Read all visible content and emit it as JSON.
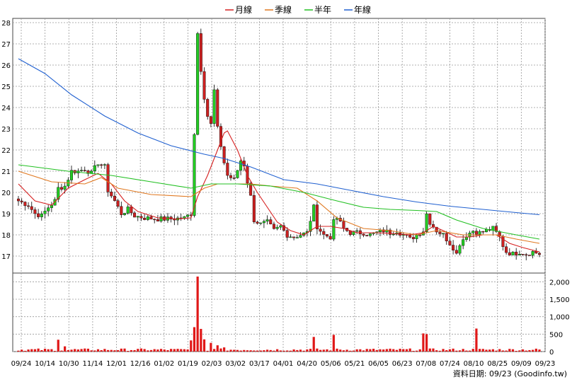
{
  "legend": [
    {
      "label": "月線",
      "color": "#d62020"
    },
    {
      "label": "季線",
      "color": "#e07820"
    },
    {
      "label": "半年",
      "color": "#22c022"
    },
    {
      "label": "年線",
      "color": "#2060d0"
    }
  ],
  "footer_text": "資料日期: 09/23  (Goodinfo.tw)",
  "chart_data": {
    "type": "candlestick",
    "price_axis": {
      "min": 16.2,
      "max": 28.2,
      "ticks": [
        17,
        18,
        19,
        20,
        21,
        22,
        23,
        24,
        25,
        26,
        27,
        28
      ],
      "side": "left"
    },
    "volume_axis": {
      "min": 0,
      "max": 2250,
      "ticks": [
        0,
        500,
        1000,
        1500,
        2000
      ],
      "tick_labels": [
        "0",
        "500",
        "1,000",
        "1,500",
        "2,000"
      ],
      "side": "right"
    },
    "x_ticks": [
      "09/24",
      "10/14",
      "10/30",
      "11/14",
      "12/01",
      "12/16",
      "01/02",
      "01/19",
      "02/03",
      "03/02",
      "03/17",
      "04/01",
      "04/20",
      "05/06",
      "05/21",
      "06/05",
      "06/23",
      "07/08",
      "07/24",
      "08/10",
      "08/25",
      "09/09",
      "09/23"
    ],
    "up_color": "#22cc22",
    "down_color": "#cc2020",
    "grid": true,
    "price_anchors": [
      [
        0,
        19.6
      ],
      [
        3,
        19.4
      ],
      [
        5,
        19.0
      ],
      [
        7,
        18.9
      ],
      [
        9,
        19.3
      ],
      [
        11,
        19.6
      ],
      [
        12,
        20.2
      ],
      [
        14,
        20.3
      ],
      [
        16,
        21.0
      ],
      [
        18,
        21.0
      ],
      [
        20,
        21.1
      ],
      [
        22,
        20.9
      ],
      [
        24,
        21.4
      ],
      [
        26,
        21.2
      ],
      [
        27,
        20.1
      ],
      [
        29,
        19.6
      ],
      [
        31,
        19.0
      ],
      [
        33,
        19.2
      ],
      [
        35,
        18.9
      ],
      [
        38,
        18.8
      ],
      [
        42,
        18.75
      ],
      [
        46,
        18.75
      ],
      [
        50,
        18.8
      ],
      [
        52,
        19.0
      ],
      [
        53,
        22.8
      ],
      [
        54,
        27.5
      ],
      [
        55,
        25.8
      ],
      [
        56,
        24.5
      ],
      [
        57,
        23.6
      ],
      [
        58,
        23.2
      ],
      [
        59,
        24.8
      ],
      [
        60,
        23.0
      ],
      [
        61,
        22.2
      ],
      [
        62,
        21.4
      ],
      [
        63,
        20.8
      ],
      [
        65,
        20.6
      ],
      [
        67,
        21.5
      ],
      [
        68,
        21.3
      ],
      [
        69,
        20.5
      ],
      [
        70,
        19.8
      ],
      [
        71,
        18.7
      ],
      [
        73,
        18.5
      ],
      [
        75,
        18.6
      ],
      [
        77,
        18.2
      ],
      [
        79,
        18.4
      ],
      [
        81,
        18.0
      ],
      [
        83,
        17.9
      ],
      [
        85,
        18.0
      ],
      [
        87,
        18.1
      ],
      [
        89,
        19.3
      ],
      [
        90,
        18.4
      ],
      [
        92,
        18.0
      ],
      [
        94,
        17.9
      ],
      [
        95,
        18.6
      ],
      [
        96,
        18.8
      ],
      [
        98,
        18.3
      ],
      [
        100,
        18.1
      ],
      [
        102,
        18.1
      ],
      [
        104,
        18.1
      ],
      [
        106,
        18.0
      ],
      [
        108,
        18.1
      ],
      [
        110,
        18.2
      ],
      [
        112,
        18.1
      ],
      [
        114,
        18.2
      ],
      [
        116,
        18.0
      ],
      [
        118,
        17.8
      ],
      [
        120,
        18.0
      ],
      [
        122,
        18.2
      ],
      [
        123,
        19.0
      ],
      [
        124,
        18.6
      ],
      [
        126,
        18.2
      ],
      [
        128,
        18.0
      ],
      [
        130,
        17.6
      ],
      [
        131,
        17.4
      ],
      [
        132,
        17.1
      ],
      [
        133,
        17.6
      ],
      [
        135,
        18.0
      ],
      [
        137,
        18.2
      ],
      [
        139,
        18.1
      ],
      [
        141,
        18.2
      ],
      [
        143,
        18.3
      ],
      [
        145,
        17.9
      ],
      [
        146,
        17.5
      ],
      [
        147,
        17.2
      ],
      [
        149,
        17.1
      ],
      [
        151,
        17.2
      ],
      [
        153,
        17.1
      ],
      [
        155,
        17.2
      ],
      [
        157,
        17.1
      ]
    ],
    "volume_spikes": [
      [
        52,
        320
      ],
      [
        53,
        700
      ],
      [
        54,
        2150
      ],
      [
        55,
        650
      ],
      [
        56,
        350
      ],
      [
        58,
        250
      ],
      [
        60,
        180
      ],
      [
        62,
        120
      ],
      [
        12,
        340
      ],
      [
        14,
        150
      ],
      [
        89,
        420
      ],
      [
        95,
        480
      ],
      [
        122,
        520
      ],
      [
        123,
        500
      ],
      [
        138,
        660
      ]
    ],
    "ma_lines": [
      {
        "label": "月線",
        "color": "#d62020",
        "points": [
          [
            0,
            20.4
          ],
          [
            5,
            19.6
          ],
          [
            10,
            19.4
          ],
          [
            15,
            20.2
          ],
          [
            20,
            20.6
          ],
          [
            24,
            20.9
          ],
          [
            28,
            20.4
          ],
          [
            32,
            19.6
          ],
          [
            36,
            19.1
          ],
          [
            42,
            18.8
          ],
          [
            48,
            18.75
          ],
          [
            52,
            18.8
          ],
          [
            54,
            19.8
          ],
          [
            57,
            20.8
          ],
          [
            60,
            22.0
          ],
          [
            62,
            22.8
          ],
          [
            63,
            22.9
          ],
          [
            66,
            22.0
          ],
          [
            69,
            20.8
          ],
          [
            72,
            20.0
          ],
          [
            75,
            19.3
          ],
          [
            78,
            18.6
          ],
          [
            82,
            18.2
          ],
          [
            86,
            18.0
          ],
          [
            90,
            18.4
          ],
          [
            94,
            18.4
          ],
          [
            98,
            18.3
          ],
          [
            102,
            18.1
          ],
          [
            108,
            18.1
          ],
          [
            114,
            18.05
          ],
          [
            118,
            18.0
          ],
          [
            122,
            18.1
          ],
          [
            125,
            18.4
          ],
          [
            128,
            18.2
          ],
          [
            132,
            17.9
          ],
          [
            136,
            17.9
          ],
          [
            140,
            18.0
          ],
          [
            144,
            18.0
          ],
          [
            148,
            17.6
          ],
          [
            152,
            17.4
          ],
          [
            157,
            17.2
          ]
        ]
      },
      {
        "label": "季線",
        "color": "#e07820",
        "points": [
          [
            0,
            21.0
          ],
          [
            10,
            20.5
          ],
          [
            20,
            20.4
          ],
          [
            25,
            20.7
          ],
          [
            30,
            20.2
          ],
          [
            40,
            19.9
          ],
          [
            52,
            19.8
          ],
          [
            56,
            20.2
          ],
          [
            60,
            20.4
          ],
          [
            70,
            20.4
          ],
          [
            76,
            20.3
          ],
          [
            84,
            20.2
          ],
          [
            90,
            19.6
          ],
          [
            96,
            18.8
          ],
          [
            104,
            18.3
          ],
          [
            112,
            18.2
          ],
          [
            120,
            18.0
          ],
          [
            126,
            18.2
          ],
          [
            134,
            18.0
          ],
          [
            144,
            18.0
          ],
          [
            150,
            17.8
          ],
          [
            157,
            17.6
          ]
        ]
      },
      {
        "label": "半年",
        "color": "#22c022",
        "points": [
          [
            0,
            21.3
          ],
          [
            15,
            21.0
          ],
          [
            28,
            20.8
          ],
          [
            40,
            20.5
          ],
          [
            52,
            20.2
          ],
          [
            58,
            20.4
          ],
          [
            66,
            20.4
          ],
          [
            76,
            20.3
          ],
          [
            86,
            20.0
          ],
          [
            96,
            19.6
          ],
          [
            104,
            19.3
          ],
          [
            112,
            19.2
          ],
          [
            120,
            19.15
          ],
          [
            126,
            19.1
          ],
          [
            132,
            18.7
          ],
          [
            140,
            18.3
          ],
          [
            150,
            18.0
          ],
          [
            157,
            17.8
          ]
        ]
      },
      {
        "label": "年線",
        "color": "#2060d0",
        "points": [
          [
            0,
            26.3
          ],
          [
            8,
            25.6
          ],
          [
            16,
            24.6
          ],
          [
            26,
            23.6
          ],
          [
            36,
            22.8
          ],
          [
            46,
            22.2
          ],
          [
            56,
            21.8
          ],
          [
            62,
            21.6
          ],
          [
            70,
            21.2
          ],
          [
            80,
            20.6
          ],
          [
            90,
            20.4
          ],
          [
            100,
            20.1
          ],
          [
            110,
            19.8
          ],
          [
            120,
            19.55
          ],
          [
            130,
            19.35
          ],
          [
            140,
            19.2
          ],
          [
            150,
            19.05
          ],
          [
            157,
            18.95
          ]
        ]
      }
    ]
  }
}
